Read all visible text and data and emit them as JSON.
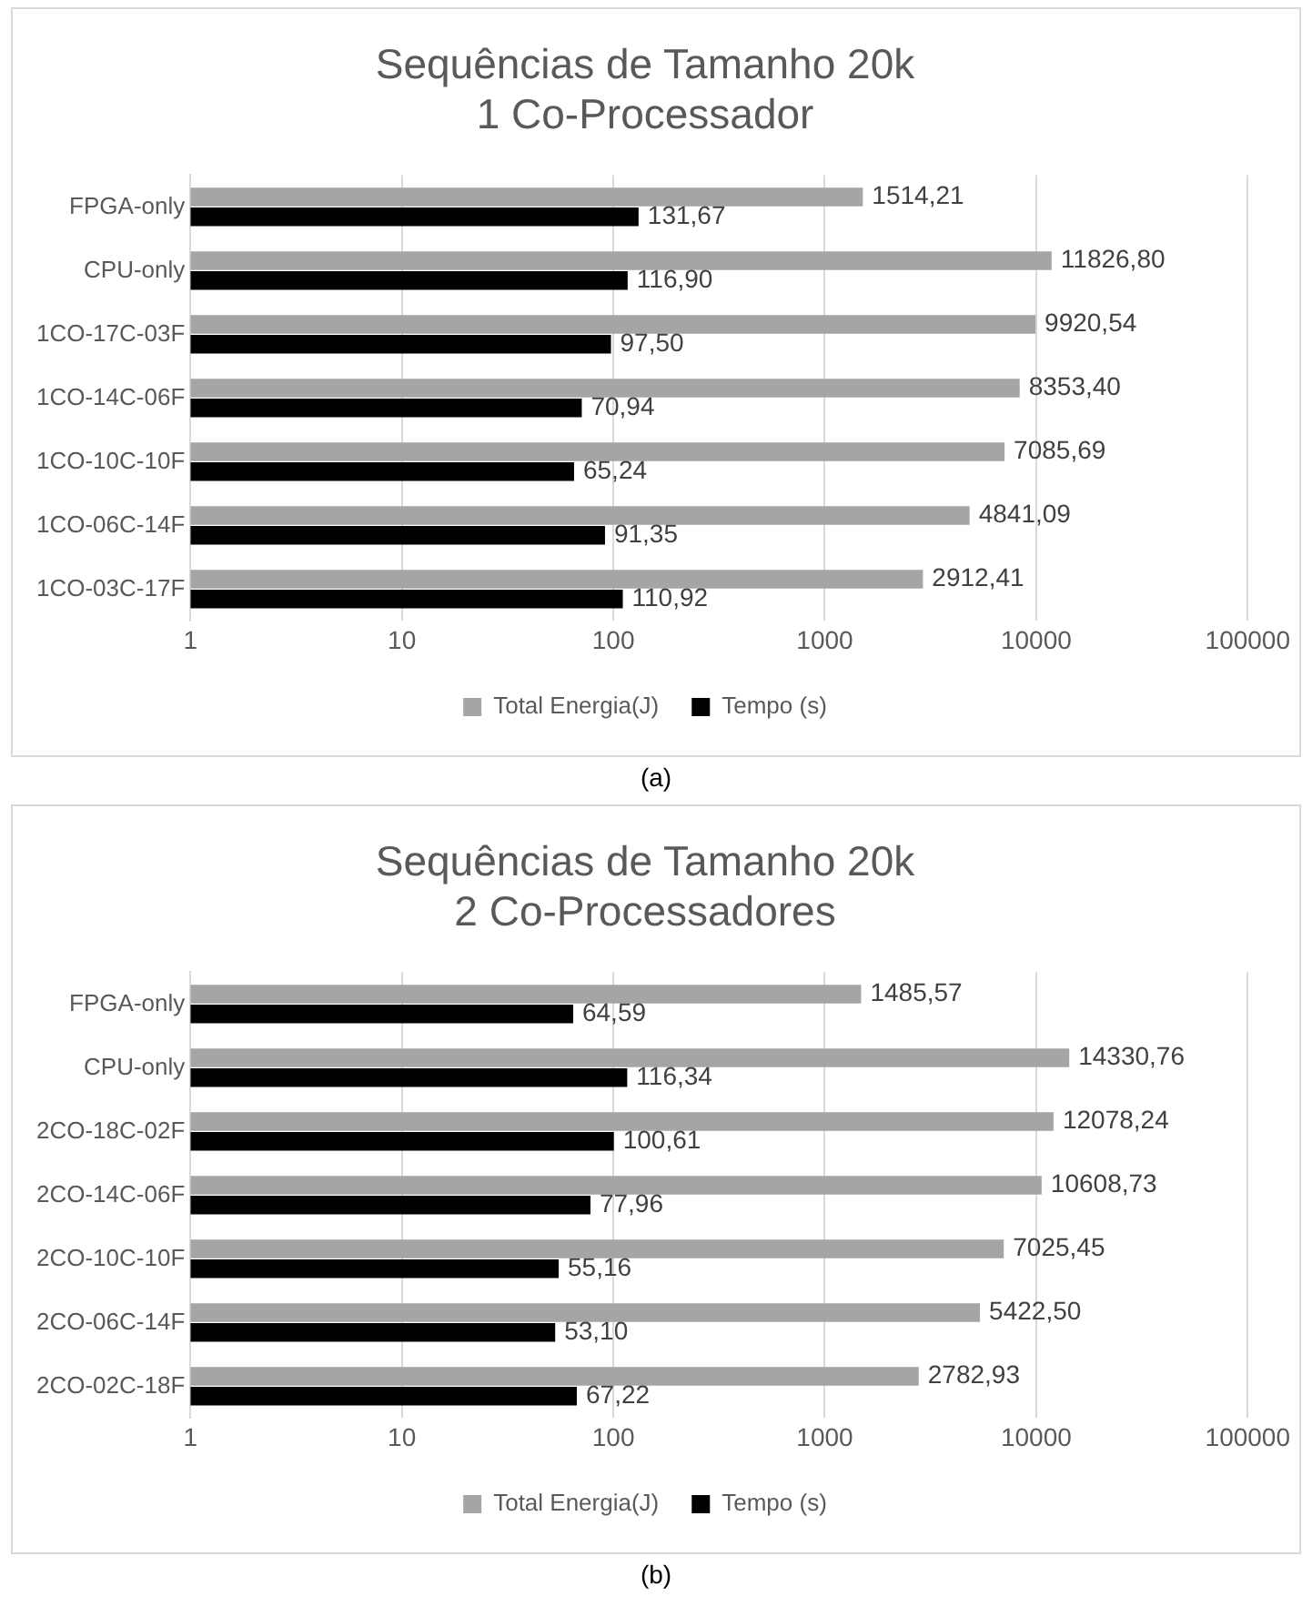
{
  "chart_data": [
    {
      "type": "bar",
      "orientation": "horizontal",
      "title": "Sequências de Tamanho 20k\n1 Co-Processador",
      "categories": [
        "FPGA-only",
        "CPU-only",
        "1CO-17C-03F",
        "1CO-14C-06F",
        "1CO-10C-10F",
        "1CO-06C-14F",
        "1CO-03C-17F"
      ],
      "series": [
        {
          "name": "Total Energia(J)",
          "color": "#a5a5a5",
          "values": [
            1514.21,
            11826.8,
            9920.54,
            8353.4,
            7085.69,
            4841.09,
            2912.41
          ],
          "value_labels": [
            "1514,21",
            "11826,80",
            "9920,54",
            "8353,40",
            "7085,69",
            "4841,09",
            "2912,41"
          ]
        },
        {
          "name": "Tempo (s)",
          "color": "#000000",
          "values": [
            131.67,
            116.9,
            97.5,
            70.94,
            65.24,
            91.35,
            110.92
          ],
          "value_labels": [
            "131,67",
            "116,90",
            "97,50",
            "70,94",
            "65,24",
            "91,35",
            "110,92"
          ]
        }
      ],
      "xlim": [
        1,
        100000
      ],
      "xticks": [
        1,
        10,
        100,
        1000,
        10000,
        100000
      ],
      "log": "x",
      "grid": "x",
      "legend": "bottom",
      "annotations": [
        "(a)"
      ]
    },
    {
      "type": "bar",
      "orientation": "horizontal",
      "title": "Sequências de Tamanho 20k\n2 Co-Processadores",
      "categories": [
        "FPGA-only",
        "CPU-only",
        "2CO-18C-02F",
        "2CO-14C-06F",
        "2CO-10C-10F",
        "2CO-06C-14F",
        "2CO-02C-18F"
      ],
      "series": [
        {
          "name": "Total Energia(J)",
          "color": "#a5a5a5",
          "values": [
            1485.57,
            14330.76,
            12078.24,
            10608.73,
            7025.45,
            5422.5,
            2782.93
          ],
          "value_labels": [
            "1485,57",
            "14330,76",
            "12078,24",
            "10608,73",
            "7025,45",
            "5422,50",
            "2782,93"
          ]
        },
        {
          "name": "Tempo (s)",
          "color": "#000000",
          "values": [
            64.59,
            116.34,
            100.61,
            77.96,
            55.16,
            53.1,
            67.22
          ],
          "value_labels": [
            "64,59",
            "116,34",
            "100,61",
            "77,96",
            "55,16",
            "53,10",
            "67,22"
          ]
        }
      ],
      "xlim": [
        1,
        100000
      ],
      "xticks": [
        1,
        10,
        100,
        1000,
        10000,
        100000
      ],
      "log": "x",
      "grid": "x",
      "legend": "bottom",
      "annotations": [
        "(b)"
      ]
    }
  ]
}
